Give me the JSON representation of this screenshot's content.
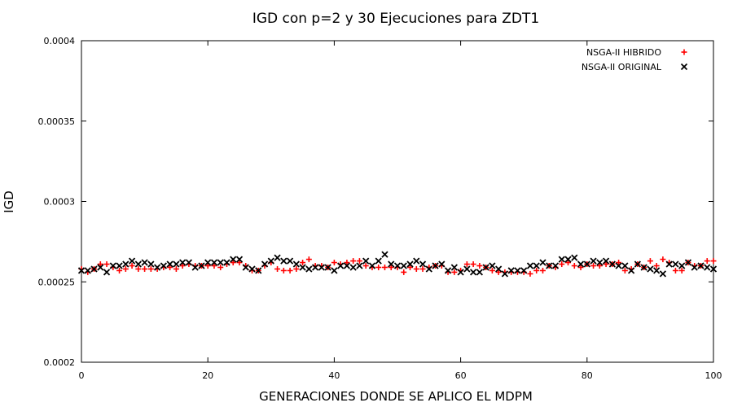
{
  "chart_data": {
    "type": "scatter",
    "title": "IGD con p=2 y 30 Ejecuciones para ZDT1",
    "xlabel": "GENERACIONES DONDE SE APLICO EL MDPM",
    "ylabel": "IGD",
    "xlim": [
      0,
      100
    ],
    "ylim": [
      0.0002,
      0.0004
    ],
    "x_ticks": [
      0,
      20,
      40,
      60,
      80,
      100
    ],
    "x_tick_labels": [
      "0",
      "20",
      "40",
      "60",
      "80",
      "100"
    ],
    "y_ticks": [
      0.0002,
      0.00025,
      0.0003,
      0.00035,
      0.0004
    ],
    "y_tick_labels": [
      "0.0002",
      "0.00025",
      "0.0003",
      "0.00035",
      "0.0004"
    ],
    "grid": false,
    "legend_position": "top-right",
    "series": [
      {
        "name": "NSGA-II HIBRIDO",
        "marker": "plus",
        "color": "#ff0000",
        "x": [
          0,
          1,
          2,
          3,
          4,
          5,
          6,
          7,
          8,
          9,
          10,
          11,
          12,
          13,
          14,
          15,
          16,
          17,
          18,
          19,
          20,
          21,
          22,
          23,
          24,
          25,
          26,
          27,
          28,
          29,
          30,
          31,
          32,
          33,
          34,
          35,
          36,
          37,
          38,
          39,
          40,
          41,
          42,
          43,
          44,
          45,
          46,
          47,
          48,
          49,
          50,
          51,
          52,
          53,
          54,
          55,
          56,
          57,
          58,
          59,
          60,
          61,
          62,
          63,
          64,
          65,
          66,
          67,
          68,
          69,
          70,
          71,
          72,
          73,
          74,
          75,
          76,
          77,
          78,
          79,
          80,
          81,
          82,
          83,
          84,
          85,
          86,
          87,
          88,
          89,
          90,
          91,
          92,
          93,
          94,
          95,
          96,
          97,
          98,
          99,
          100
        ],
        "y": [
          0.000258,
          0.000256,
          0.000258,
          0.000261,
          0.000261,
          0.000259,
          0.000257,
          0.000258,
          0.00026,
          0.000258,
          0.000258,
          0.000258,
          0.000258,
          0.000259,
          0.000259,
          0.000258,
          0.00026,
          0.000261,
          0.00026,
          0.00026,
          0.00026,
          0.00026,
          0.000259,
          0.000261,
          0.000262,
          0.000262,
          0.00026,
          0.000257,
          0.000257,
          0.00026,
          0.000262,
          0.000258,
          0.000257,
          0.000257,
          0.000258,
          0.000262,
          0.000264,
          0.00026,
          0.00026,
          0.000259,
          0.000262,
          0.000261,
          0.000262,
          0.000263,
          0.000263,
          0.00026,
          0.000259,
          0.000259,
          0.000259,
          0.000259,
          0.000259,
          0.000256,
          0.000259,
          0.000258,
          0.000258,
          0.000259,
          0.00026,
          0.00026,
          0.000256,
          0.000256,
          0.000257,
          0.000261,
          0.000261,
          0.00026,
          0.000259,
          0.000257,
          0.000256,
          0.000256,
          0.000256,
          0.000256,
          0.000256,
          0.000255,
          0.000257,
          0.000257,
          0.00026,
          0.000259,
          0.000261,
          0.000262,
          0.00026,
          0.000259,
          0.000261,
          0.00026,
          0.00026,
          0.000261,
          0.000261,
          0.000262,
          0.000257,
          0.000258,
          0.000261,
          0.000259,
          0.000263,
          0.00026,
          0.000264,
          0.000262,
          0.000257,
          0.000257,
          0.000262,
          0.00026,
          0.00026,
          0.000263,
          0.000263
        ]
      },
      {
        "name": "NSGA-II ORIGINAL",
        "marker": "cross",
        "color": "#000000",
        "x": [
          0,
          1,
          2,
          3,
          4,
          5,
          6,
          7,
          8,
          9,
          10,
          11,
          12,
          13,
          14,
          15,
          16,
          17,
          18,
          19,
          20,
          21,
          22,
          23,
          24,
          25,
          26,
          27,
          28,
          29,
          30,
          31,
          32,
          33,
          34,
          35,
          36,
          37,
          38,
          39,
          40,
          41,
          42,
          43,
          44,
          45,
          46,
          47,
          48,
          49,
          50,
          51,
          52,
          53,
          54,
          55,
          56,
          57,
          58,
          59,
          60,
          61,
          62,
          63,
          64,
          65,
          66,
          67,
          68,
          69,
          70,
          71,
          72,
          73,
          74,
          75,
          76,
          77,
          78,
          79,
          80,
          81,
          82,
          83,
          84,
          85,
          86,
          87,
          88,
          89,
          90,
          91,
          92,
          93,
          94,
          95,
          96,
          97,
          98,
          99,
          100
        ],
        "y": [
          0.000257,
          0.000257,
          0.000258,
          0.000259,
          0.000256,
          0.00026,
          0.00026,
          0.000261,
          0.000263,
          0.000261,
          0.000262,
          0.000261,
          0.000259,
          0.00026,
          0.000261,
          0.000261,
          0.000262,
          0.000262,
          0.000259,
          0.00026,
          0.000262,
          0.000262,
          0.000262,
          0.000262,
          0.000264,
          0.000264,
          0.000259,
          0.000258,
          0.000257,
          0.000261,
          0.000263,
          0.000265,
          0.000263,
          0.000263,
          0.000261,
          0.000259,
          0.000258,
          0.000259,
          0.000259,
          0.000259,
          0.000257,
          0.00026,
          0.00026,
          0.000259,
          0.00026,
          0.000263,
          0.00026,
          0.000263,
          0.000267,
          0.000261,
          0.00026,
          0.00026,
          0.000261,
          0.000263,
          0.000261,
          0.000258,
          0.00026,
          0.000261,
          0.000257,
          0.000259,
          0.000256,
          0.000258,
          0.000256,
          0.000256,
          0.000259,
          0.00026,
          0.000258,
          0.000255,
          0.000257,
          0.000257,
          0.000257,
          0.00026,
          0.00026,
          0.000262,
          0.00026,
          0.00026,
          0.000264,
          0.000264,
          0.000265,
          0.000261,
          0.000261,
          0.000263,
          0.000262,
          0.000263,
          0.000261,
          0.00026,
          0.00026,
          0.000257,
          0.000261,
          0.000259,
          0.000258,
          0.000257,
          0.000255,
          0.000261,
          0.000261,
          0.00026,
          0.000262,
          0.000259,
          0.00026,
          0.000259,
          0.000258
        ]
      }
    ]
  }
}
